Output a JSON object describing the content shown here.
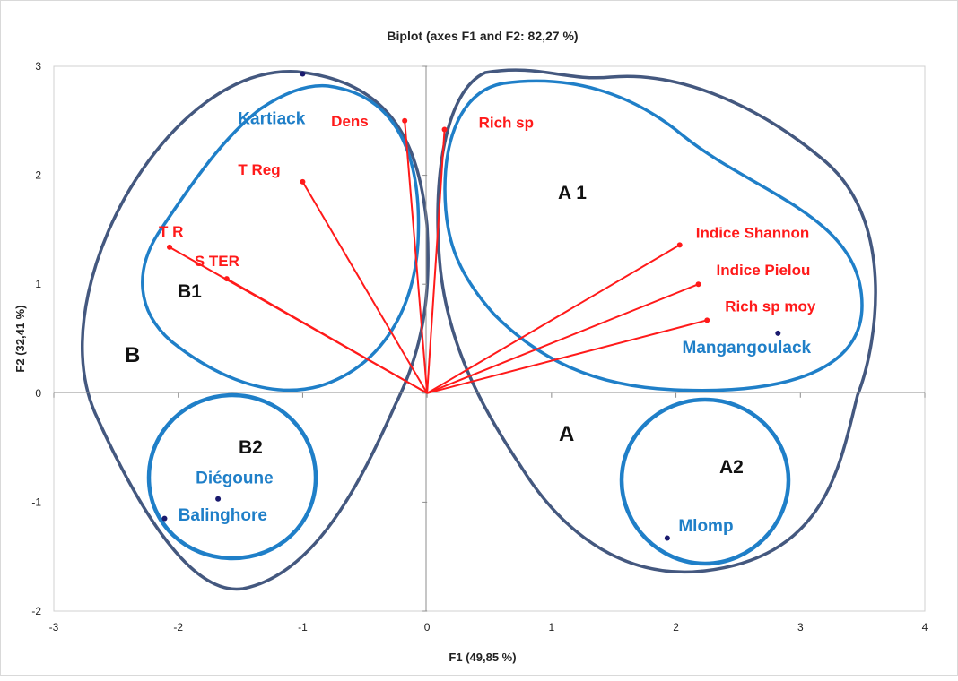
{
  "chart_data": {
    "type": "scatter",
    "title": "Biplot (axes F1 and F2: 82,27 %)",
    "xlabel": "F1 (49,85 %)",
    "ylabel": "F2 (32,41 %)",
    "xlim": [
      -3,
      4
    ],
    "ylim": [
      -2,
      3
    ],
    "xticks": [
      "-3",
      "-2",
      "-1",
      "0",
      "1",
      "2",
      "3",
      "4"
    ],
    "yticks": [
      "-2",
      "-1",
      "0",
      "1",
      "2",
      "3"
    ],
    "xtick_values": [
      -3,
      -2,
      -1,
      0,
      1,
      2,
      3,
      4
    ],
    "ytick_values": [
      -2,
      -1,
      0,
      1,
      2,
      3
    ],
    "grid": false,
    "variables": [
      {
        "label": "T R",
        "x": -2.07,
        "y": 1.34
      },
      {
        "label": "S TER",
        "x": -1.61,
        "y": 1.05
      },
      {
        "label": "T Reg",
        "x": -1.0,
        "y": 1.94
      },
      {
        "label": "Dens",
        "x": -0.18,
        "y": 2.5
      },
      {
        "label": "Rich sp",
        "x": 0.14,
        "y": 2.42
      },
      {
        "label": "Indice Shannon",
        "x": 2.03,
        "y": 1.36
      },
      {
        "label": "Indice Pielou",
        "x": 2.18,
        "y": 1.0
      },
      {
        "label": "Rich sp moy",
        "x": 2.25,
        "y": 0.67
      }
    ],
    "observations": [
      {
        "label": "",
        "x": -1.0,
        "y": 2.93
      },
      {
        "label": "Kartiack",
        "x": -1.0,
        "y": 2.93
      },
      {
        "label": "Mangangoulack",
        "x": 2.82,
        "y": 0.55
      },
      {
        "label": "Diégoune",
        "x": -1.68,
        "y": -0.97
      },
      {
        "label": "Balinghore",
        "x": -2.11,
        "y": -1.15
      },
      {
        "label": "Mlomp",
        "x": 1.93,
        "y": -1.33
      }
    ],
    "groups": [
      "A",
      "A 1",
      "A2",
      "B",
      "B1",
      "B2"
    ],
    "colors": {
      "variables": "#ff1a1a",
      "observations": "#1f7fc8",
      "points": "#1a1a6e",
      "outer_contours": "#44587f",
      "inner_contours": "#1f7fc8"
    }
  }
}
